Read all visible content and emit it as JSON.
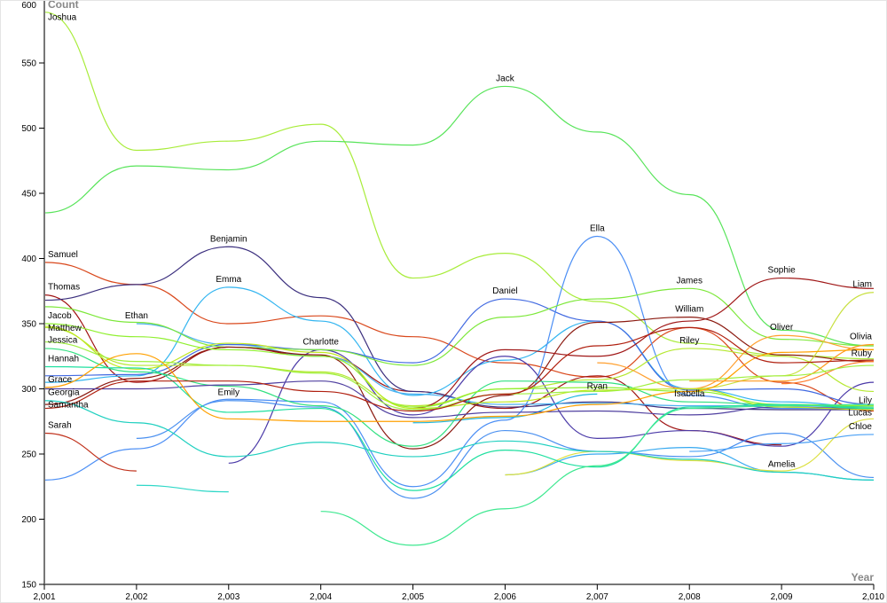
{
  "chart_data": {
    "type": "line",
    "title": "",
    "xlabel": "Year",
    "ylabel": "Count",
    "xlim": [
      2001,
      2010
    ],
    "ylim": [
      150,
      600
    ],
    "x": [
      2001,
      2002,
      2003,
      2004,
      2005,
      2006,
      2007,
      2008,
      2009,
      2010
    ],
    "x_tick_labels": [
      "2,001",
      "2,002",
      "2,003",
      "2,004",
      "2,005",
      "2,006",
      "2,007",
      "2,008",
      "2,009",
      "2,010"
    ],
    "y_ticks": [
      150,
      200,
      250,
      300,
      350,
      400,
      450,
      500,
      550,
      600
    ],
    "y_tick_labels": [
      "150",
      "200",
      "250",
      "300",
      "350",
      "400",
      "450",
      "500",
      "550",
      "600"
    ],
    "grid": false,
    "legend": "none (inline labels)",
    "series": [
      {
        "name": "Joshua",
        "color": "#a8ec3a",
        "label_year": 2001,
        "values": [
          589,
          483,
          490,
          503,
          385,
          404,
          367,
          335,
          326,
          323
        ]
      },
      {
        "name": "Jack",
        "color": "#58e45a",
        "label_year": 2006,
        "values": [
          435,
          471,
          468,
          490,
          487,
          532,
          497,
          449,
          345,
          333
        ]
      },
      {
        "name": "Samuel",
        "color": "#d9481c",
        "label_year": 2001,
        "values": [
          397,
          380,
          350,
          356,
          340,
          320,
          309,
          347,
          305,
          283
        ]
      },
      {
        "name": "Thomas",
        "color": "#a01414",
        "label_year": 2001,
        "values": [
          372,
          305,
          332,
          325,
          298,
          285,
          310,
          268,
          257,
          null
        ]
      },
      {
        "name": "Benjamin",
        "color": "#3b2f7e",
        "label_year": 2003,
        "values": [
          368,
          380,
          409,
          370,
          298,
          286,
          290,
          285,
          284,
          284
        ]
      },
      {
        "name": "Emma",
        "color": "#33b5f0",
        "label_year": 2003,
        "values": [
          305,
          310,
          378,
          352,
          295,
          322,
          352,
          300,
          290,
          286
        ]
      },
      {
        "name": "Ethan",
        "color": "#4ab0f0",
        "label_year": 2002,
        "values": [
          null,
          350,
          334,
          325,
          296,
          288,
          289,
          287,
          287,
          286
        ]
      },
      {
        "name": "Charlotte",
        "color": "#4b3aa8",
        "label_year": 2004,
        "values": [
          null,
          null,
          243,
          330,
          280,
          325,
          262,
          268,
          256,
          305
        ]
      },
      {
        "name": "Emily",
        "color": "#4a90f0",
        "label_year": 2003,
        "values": [
          null,
          262,
          291,
          286,
          216,
          268,
          252,
          248,
          266,
          232
        ]
      },
      {
        "name": "Daniel",
        "color": "#4169e1",
        "label_year": 2006,
        "values": [
          310,
          311,
          334,
          330,
          320,
          369,
          352,
          299,
          300,
          288
        ]
      },
      {
        "name": "Ella",
        "color": "#4c8ff5",
        "label_year": 2007,
        "values": [
          230,
          254,
          292,
          290,
          225,
          276,
          417,
          295,
          285,
          285
        ]
      },
      {
        "name": "Ryan",
        "color": "#20b8e0",
        "label_year": 2007,
        "values": [
          null,
          null,
          null,
          null,
          274,
          278,
          296,
          null,
          null,
          null
        ]
      },
      {
        "name": "James",
        "color": "#7de83a",
        "label_year": 2008,
        "values": [
          363,
          351,
          332,
          330,
          318,
          355,
          369,
          377,
          338,
          333
        ]
      },
      {
        "name": "William",
        "color": "#8b1a10",
        "label_year": 2008,
        "values": [
          288,
          308,
          332,
          326,
          254,
          295,
          351,
          355,
          326,
          321
        ]
      },
      {
        "name": "Riley",
        "color": "#b5e830",
        "label_year": 2008,
        "values": [
          347,
          318,
          318,
          313,
          287,
          300,
          307,
          331,
          325,
          298
        ]
      },
      {
        "name": "Isabella",
        "color": "#30e080",
        "label_year": 2008,
        "values": [
          331,
          313,
          302,
          287,
          256,
          306,
          305,
          290,
          288,
          286
        ]
      },
      {
        "name": "Sophie",
        "color": "#a01818",
        "label_year": 2009,
        "values": [
          null,
          null,
          null,
          null,
          285,
          330,
          325,
          352,
          385,
          377
        ]
      },
      {
        "name": "Oliver",
        "color": "#ffa030",
        "label_year": 2009,
        "values": [
          null,
          null,
          null,
          null,
          null,
          null,
          320,
          300,
          341,
          330
        ]
      },
      {
        "name": "Amelia",
        "color": "#35a8f0",
        "label_year": 2009,
        "values": [
          null,
          null,
          null,
          null,
          null,
          234,
          250,
          255,
          236,
          230
        ]
      },
      {
        "name": "Liam",
        "color": "#c8e040",
        "label_year": 2010,
        "values": [
          null,
          null,
          null,
          null,
          null,
          null,
          null,
          300,
          310,
          374
        ]
      },
      {
        "name": "Olivia",
        "color": "#ff9a20",
        "label_year": 2010,
        "values": [
          null,
          null,
          null,
          null,
          null,
          null,
          null,
          306,
          306,
          334
        ]
      },
      {
        "name": "Ruby",
        "color": "#ff7a2a",
        "label_year": 2010,
        "values": [
          null,
          null,
          null,
          null,
          null,
          null,
          null,
          null,
          304,
          321
        ]
      },
      {
        "name": "Lily",
        "color": "#5040a0",
        "label_year": 2010,
        "values": [
          300,
          300,
          303,
          306,
          278,
          282,
          283,
          280,
          286,
          285
        ]
      },
      {
        "name": "Lucas",
        "color": "#dce040",
        "label_year": 2010,
        "values": [
          null,
          null,
          null,
          null,
          null,
          234,
          252,
          245,
          237,
          277
        ]
      },
      {
        "name": "Chloe",
        "color": "#4aa0f5",
        "label_year": 2010,
        "values": [
          null,
          null,
          null,
          null,
          null,
          null,
          null,
          252,
          258,
          265
        ]
      },
      {
        "name": "Jacob",
        "color": "#90f030",
        "label_year": 2001,
        "values": [
          350,
          340,
          330,
          325,
          286,
          300,
          301,
          298,
          288,
          287
        ]
      },
      {
        "name": "Matthew",
        "color": "#c0e820",
        "label_year": 2001,
        "values": [
          348,
          315,
          335,
          328,
          285,
          290,
          299,
          300,
          286,
          284
        ]
      },
      {
        "name": "Jessica",
        "color": "#a0f040",
        "label_year": 2001,
        "values": [
          336,
          321,
          318,
          312,
          284,
          296,
          298,
          307,
          310,
          318
        ]
      },
      {
        "name": "Hannah",
        "color": "#20e0a0",
        "label_year": 2001,
        "values": [
          317,
          316,
          282,
          285,
          222,
          253,
          240,
          286,
          288,
          285
        ]
      },
      {
        "name": "Grace",
        "color": "#ffa000",
        "label_year": 2001,
        "values": [
          301,
          327,
          277,
          275,
          275,
          279,
          288,
          298,
          328,
          330
        ]
      },
      {
        "name": "Georgia",
        "color": "#20d0c0",
        "label_year": 2001,
        "values": [
          291,
          274,
          248,
          259,
          248,
          260,
          252,
          246,
          236,
          230
        ]
      },
      {
        "name": "Samantha",
        "color": "#b02010",
        "label_year": 2001,
        "values": [
          285,
          306,
          306,
          298,
          283,
          296,
          333,
          347,
          320,
          322
        ]
      },
      {
        "name": "Sarah",
        "color": "#c0301a",
        "label_year": 2001,
        "values": [
          266,
          237,
          null,
          null,
          null,
          null,
          null,
          null,
          null,
          null
        ]
      },
      {
        "name": "",
        "color": "#30d8c8",
        "label_year": null,
        "values": [
          null,
          226,
          221,
          null,
          null,
          null,
          null,
          null,
          null,
          null
        ]
      },
      {
        "name": "",
        "color": "#3ee890",
        "label_year": null,
        "values": [
          null,
          null,
          null,
          206,
          180,
          208,
          241,
          285,
          287,
          288
        ]
      }
    ]
  }
}
